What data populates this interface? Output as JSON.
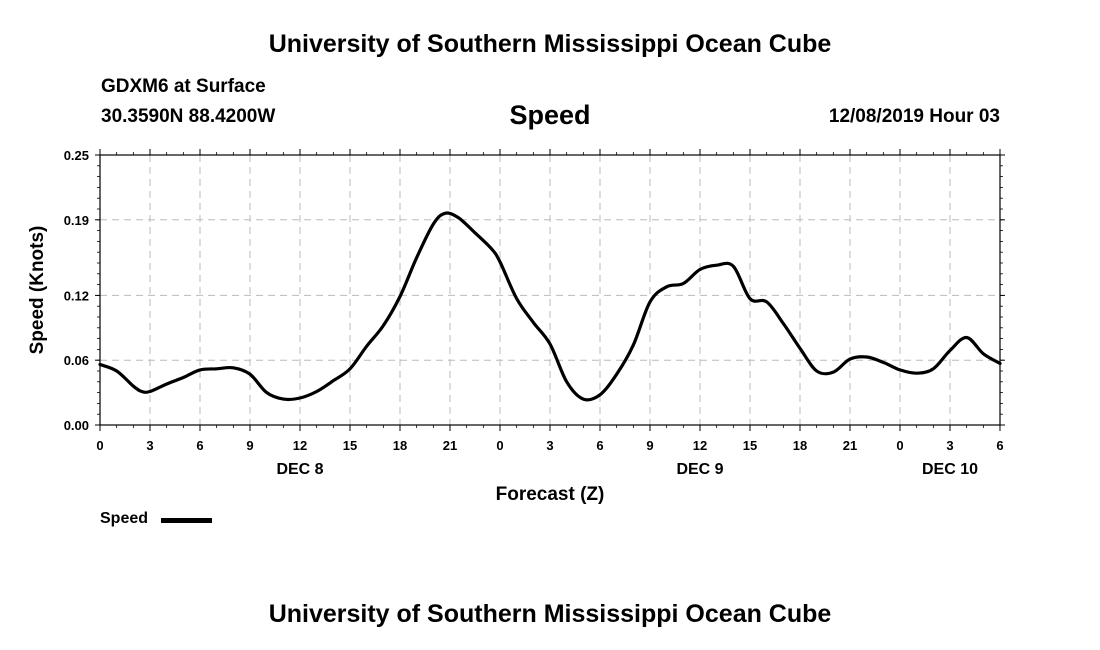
{
  "header": {
    "title": "University of Southern Mississippi Ocean Cube",
    "station": "GDXM6 at Surface",
    "coordinates": "30.3590N 88.4200W",
    "variable": "Speed",
    "datetime": "12/08/2019 Hour 03"
  },
  "footer": {
    "title": "University of Southern Mississippi Ocean Cube"
  },
  "legend": {
    "label": "Speed",
    "color": "#000000"
  },
  "chart_data": {
    "type": "line",
    "title": "Speed",
    "xlabel": "Forecast (Z)",
    "ylabel": "Speed (Knots)",
    "xlim": [
      0,
      54
    ],
    "ylim": [
      0,
      0.25
    ],
    "yticks": [
      0.0,
      0.06,
      0.12,
      0.19,
      0.25
    ],
    "ytick_labels": [
      "0.00",
      "0.06",
      "0.12",
      "0.19",
      "0.25"
    ],
    "xticks": [
      0,
      3,
      6,
      9,
      12,
      15,
      18,
      21,
      24,
      27,
      30,
      33,
      36,
      39,
      42,
      45,
      48,
      51,
      54
    ],
    "xtick_labels": [
      "0",
      "3",
      "6",
      "9",
      "12",
      "15",
      "18",
      "21",
      "0",
      "3",
      "6",
      "9",
      "12",
      "15",
      "18",
      "21",
      "0",
      "3",
      "6"
    ],
    "day_labels": [
      {
        "x": 12,
        "label": "DEC 8"
      },
      {
        "x": 36,
        "label": "DEC 9"
      },
      {
        "x": 51,
        "label": "DEC 10"
      }
    ],
    "grid": true,
    "series": [
      {
        "name": "Speed",
        "color": "#000000",
        "x": [
          0,
          1,
          2,
          2.5,
          3,
          4,
          5,
          6,
          7,
          8,
          9,
          10,
          11,
          12,
          13,
          14,
          15,
          16,
          17,
          18,
          19,
          20,
          20.7,
          21.5,
          22.5,
          23.5,
          24,
          25,
          26,
          27,
          28,
          29,
          30,
          31,
          32,
          33,
          34,
          35,
          36,
          37,
          38,
          39,
          40,
          41,
          42,
          43,
          44,
          45,
          46,
          47,
          48,
          49,
          50,
          51,
          52,
          53,
          54
        ],
        "values": [
          0.056,
          0.05,
          0.036,
          0.031,
          0.031,
          0.038,
          0.044,
          0.051,
          0.052,
          0.053,
          0.047,
          0.03,
          0.024,
          0.025,
          0.031,
          0.041,
          0.052,
          0.073,
          0.092,
          0.119,
          0.155,
          0.186,
          0.196,
          0.192,
          0.178,
          0.163,
          0.151,
          0.117,
          0.095,
          0.075,
          0.04,
          0.024,
          0.028,
          0.047,
          0.074,
          0.114,
          0.128,
          0.131,
          0.144,
          0.148,
          0.147,
          0.117,
          0.114,
          0.094,
          0.071,
          0.05,
          0.049,
          0.061,
          0.063,
          0.058,
          0.051,
          0.048,
          0.052,
          0.069,
          0.081,
          0.066,
          0.057
        ]
      }
    ]
  }
}
